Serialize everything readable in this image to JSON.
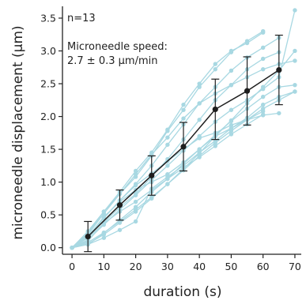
{
  "chart_data": {
    "type": "line",
    "annotation_n": "n=13",
    "annotation_speed_line1": "Microneedle speed:",
    "annotation_speed_line2": "2.7 ± 0.3 µm/min",
    "xlabel": "duration (s)",
    "ylabel": "microneedle displacement (µm)",
    "xlim": [
      -3,
      72
    ],
    "ylim": [
      -0.1,
      3.68
    ],
    "xticks": [
      0,
      10,
      20,
      30,
      40,
      50,
      60,
      70
    ],
    "xtick_labels": [
      "0",
      "10",
      "20",
      "30",
      "40",
      "50",
      "60",
      "70"
    ],
    "yticks": [
      0.0,
      0.5,
      1.0,
      1.5,
      2.0,
      2.5,
      3.0,
      3.5
    ],
    "ytick_labels": [
      "0.0",
      "0.5",
      "1.0",
      "1.5",
      "2.0",
      "2.5",
      "3.0",
      "3.5"
    ],
    "colors": {
      "individual": "#a8d8e2",
      "mean": "#1e1e1e",
      "axis": "#222222"
    },
    "individual_series": [
      {
        "x": [
          0,
          5,
          10,
          15,
          20,
          25,
          30,
          35,
          40,
          45,
          50,
          55,
          60,
          65,
          70
        ],
        "y": [
          0.0,
          0.08,
          0.23,
          0.4,
          0.58,
          0.77,
          0.97,
          1.2,
          1.44,
          1.7,
          1.94,
          2.2,
          2.45,
          2.7,
          3.0
        ]
      },
      {
        "x": [
          0,
          5,
          10,
          15,
          20,
          25,
          30,
          35,
          40,
          45,
          50,
          55,
          60
        ],
        "y": [
          0.0,
          0.2,
          0.52,
          0.82,
          1.08,
          1.4,
          1.78,
          2.1,
          2.45,
          2.72,
          2.98,
          3.15,
          3.3
        ]
      },
      {
        "x": [
          0,
          5,
          10,
          15,
          20,
          25,
          30,
          35,
          40,
          45,
          50,
          55,
          60
        ],
        "y": [
          0.0,
          0.25,
          0.55,
          0.85,
          1.17,
          1.45,
          1.8,
          2.18,
          2.5,
          2.8,
          3.0,
          3.12,
          3.28
        ]
      },
      {
        "x": [
          0,
          5,
          10,
          15,
          20,
          25,
          30,
          35,
          40,
          45,
          50,
          55,
          60,
          65
        ],
        "y": [
          0.0,
          0.15,
          0.45,
          0.72,
          0.97,
          1.25,
          1.57,
          1.88,
          2.2,
          2.45,
          2.7,
          2.9,
          3.05,
          3.2
        ]
      },
      {
        "x": [
          0,
          5,
          10,
          15,
          20,
          25,
          30,
          35,
          40,
          45,
          50,
          55,
          60,
          65
        ],
        "y": [
          0.0,
          0.1,
          0.38,
          0.62,
          0.82,
          1.08,
          1.35,
          1.65,
          1.95,
          2.25,
          2.48,
          2.72,
          2.88,
          2.98
        ]
      },
      {
        "x": [
          0,
          5,
          10,
          15,
          20,
          25,
          30,
          35,
          40,
          45,
          50,
          55,
          60,
          65,
          70
        ],
        "y": [
          0.0,
          0.12,
          0.35,
          0.58,
          0.8,
          1.03,
          1.25,
          1.48,
          1.7,
          1.92,
          2.1,
          2.25,
          2.42,
          2.6,
          3.62
        ]
      },
      {
        "x": [
          0,
          5,
          10,
          15,
          20,
          25,
          30,
          35,
          40,
          45,
          50,
          55,
          60,
          65,
          70
        ],
        "y": [
          0.0,
          0.05,
          0.22,
          0.42,
          0.62,
          0.85,
          1.05,
          1.28,
          1.5,
          1.72,
          1.93,
          2.12,
          2.3,
          2.45,
          2.48
        ]
      },
      {
        "x": [
          0,
          5,
          10,
          15,
          20,
          25,
          30,
          35,
          40,
          45,
          50,
          55,
          60,
          65,
          70
        ],
        "y": [
          0.0,
          0.06,
          0.2,
          0.38,
          0.55,
          0.75,
          0.97,
          1.18,
          1.4,
          1.6,
          1.78,
          1.95,
          2.12,
          2.25,
          2.38
        ]
      },
      {
        "x": [
          0,
          5,
          10,
          15,
          20,
          25,
          30,
          35,
          40,
          45,
          50,
          55,
          60,
          65,
          70
        ],
        "y": [
          0.0,
          0.05,
          0.15,
          0.27,
          0.4,
          0.9,
          1.08,
          1.25,
          1.45,
          1.63,
          1.82,
          1.98,
          2.18,
          2.3,
          2.38
        ]
      },
      {
        "x": [
          0,
          5,
          10,
          15,
          20,
          25,
          30,
          35,
          40,
          45,
          50,
          55,
          60
        ],
        "y": [
          0.0,
          0.15,
          0.37,
          0.55,
          0.7,
          0.88,
          1.05,
          1.22,
          1.38,
          1.55,
          1.73,
          1.88,
          2.03
        ]
      },
      {
        "x": [
          0,
          5,
          10,
          15,
          20,
          25,
          30,
          35,
          40,
          45,
          50,
          55,
          60,
          65
        ],
        "y": [
          0.0,
          0.18,
          0.45,
          0.72,
          0.95,
          1.13,
          1.32,
          1.5,
          1.67,
          1.75,
          1.87,
          1.95,
          2.02,
          2.05
        ]
      },
      {
        "x": [
          0,
          5,
          10,
          15,
          20,
          25,
          30,
          35,
          40,
          45,
          50,
          55,
          60,
          65,
          70
        ],
        "y": [
          0.0,
          0.22,
          0.55,
          0.82,
          1.12,
          1.42,
          1.68,
          1.97,
          2.2,
          2.35,
          2.48,
          2.6,
          2.72,
          2.8,
          2.85
        ]
      },
      {
        "x": [
          0,
          5,
          10,
          15,
          20,
          25,
          30,
          35,
          40,
          45,
          50,
          55,
          60
        ],
        "y": [
          0.0,
          0.17,
          0.47,
          0.7,
          0.88,
          1.0,
          1.12,
          1.3,
          1.5,
          1.7,
          1.82,
          1.95,
          2.08
        ]
      }
    ],
    "mean_series": {
      "x": [
        5,
        15,
        25,
        35,
        45,
        55,
        65
      ],
      "y": [
        0.17,
        0.65,
        1.1,
        1.54,
        2.11,
        2.39,
        2.71
      ],
      "err": [
        0.23,
        0.23,
        0.3,
        0.37,
        0.46,
        0.52,
        0.53
      ]
    }
  }
}
